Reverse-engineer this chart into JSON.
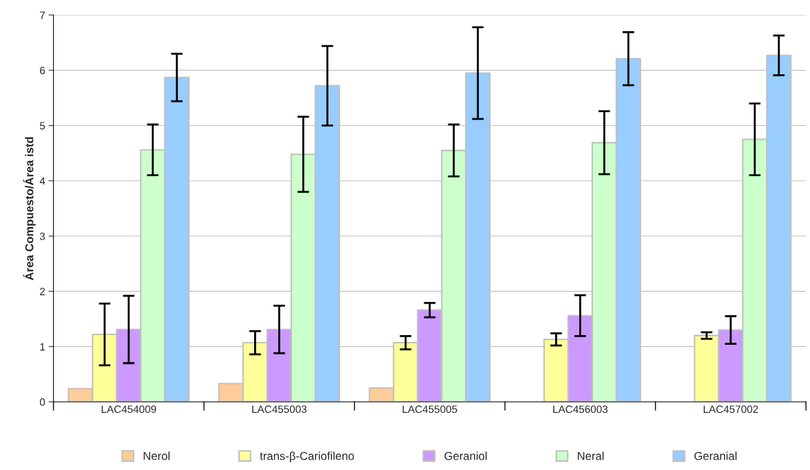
{
  "chart_data": {
    "type": "bar",
    "ylabel": "Área Compuesto/Área istd",
    "categories": [
      "LAC454009",
      "LAC455003",
      "LAC455005",
      "LAC456003",
      "LAC457002"
    ],
    "series": [
      {
        "name": "Nerol",
        "color": "#ffcc99",
        "values": [
          0.24,
          0.33,
          0.25,
          null,
          null
        ]
      },
      {
        "name": "trans-β-Cariofileno",
        "color": "#ffff99",
        "values": [
          1.22,
          1.07,
          1.07,
          1.13,
          1.2
        ],
        "errors": [
          0.56,
          0.21,
          0.12,
          0.11,
          0.06
        ]
      },
      {
        "name": "Geraniol",
        "color": "#cc99ff",
        "values": [
          1.31,
          1.31,
          1.66,
          1.56,
          1.3
        ],
        "errors": [
          0.61,
          0.43,
          0.13,
          0.37,
          0.25
        ]
      },
      {
        "name": "Neral",
        "color": "#ccffcc",
        "values": [
          4.56,
          4.48,
          4.55,
          4.69,
          4.75
        ],
        "errors": [
          0.46,
          0.68,
          0.47,
          0.57,
          0.65
        ]
      },
      {
        "name": "Geranial",
        "color": "#99ccff",
        "values": [
          5.87,
          5.72,
          5.95,
          6.21,
          6.27
        ],
        "errors": [
          0.43,
          0.72,
          0.83,
          0.48,
          0.36
        ]
      }
    ],
    "ylim": [
      0,
      7
    ],
    "yticks": [
      0,
      1,
      2,
      3,
      4,
      5,
      6,
      7
    ],
    "grid": "y",
    "legend": "bottom"
  }
}
